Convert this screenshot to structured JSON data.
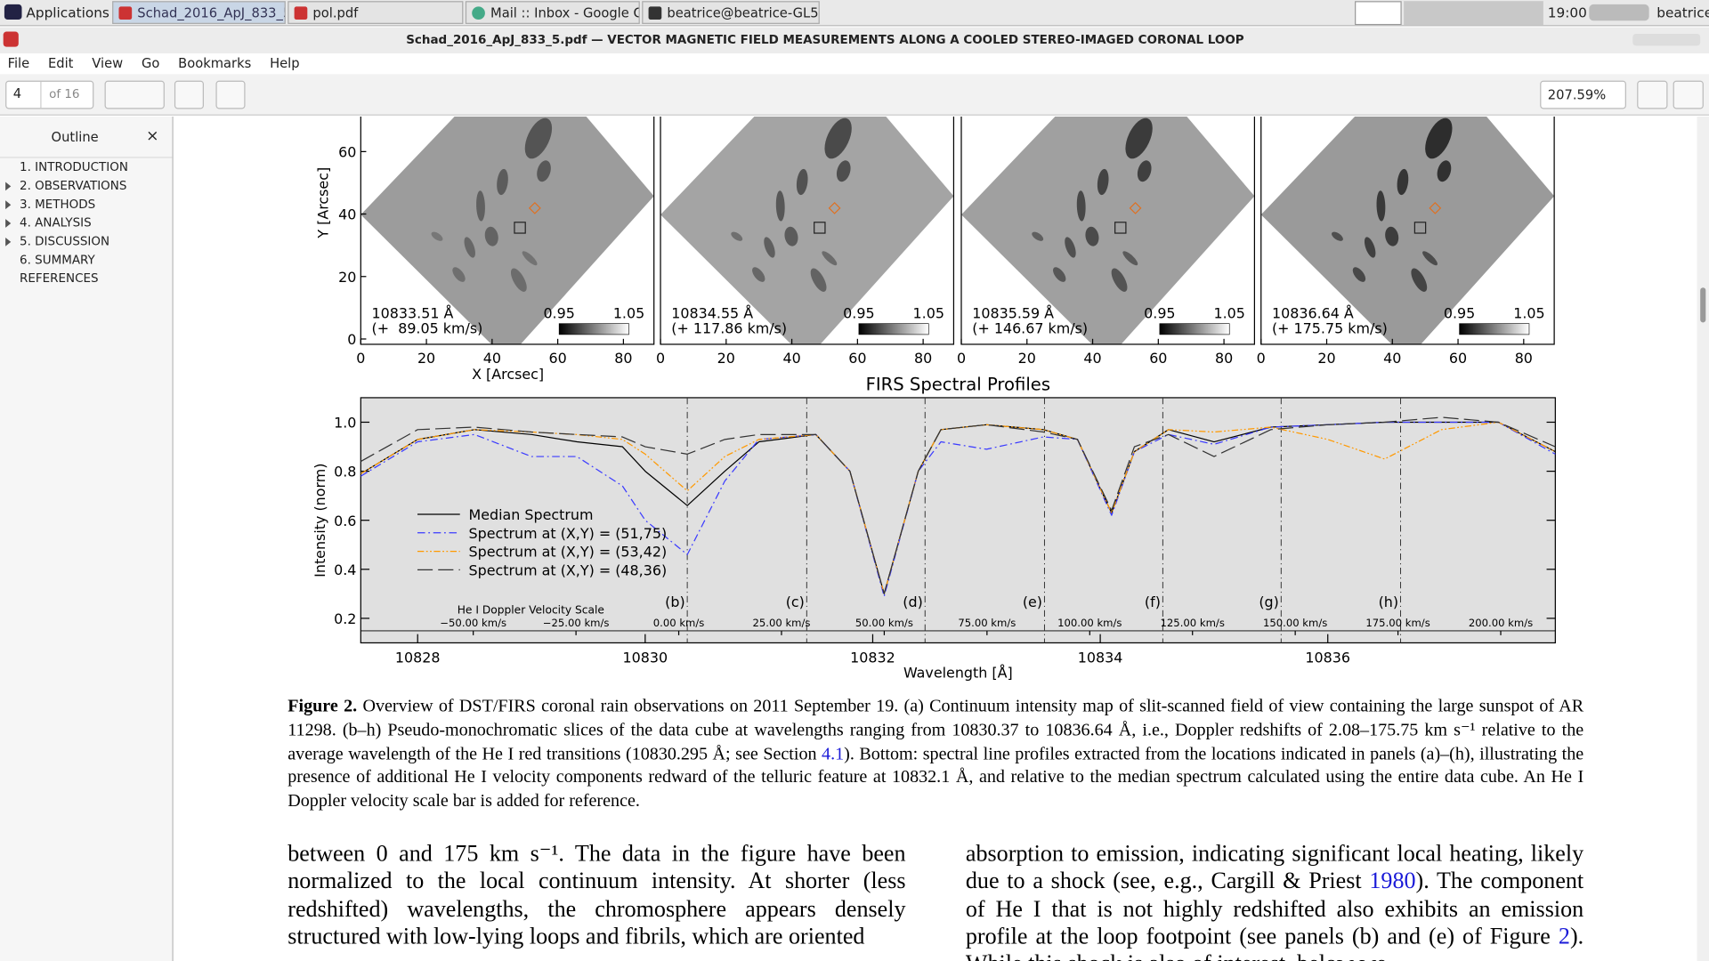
{
  "taskbar": {
    "applications": "Applications",
    "tabs": [
      "Schad_2016_ApJ_833_5....",
      "pol.pdf",
      "Mail :: Inbox - Google C...",
      "beatrice@beatrice-GL55..."
    ],
    "time": "19:00",
    "user": "beatrice"
  },
  "window": {
    "title": "Schad_2016_ApJ_833_5.pdf — VECTOR MAGNETIC FIELD MEASUREMENTS ALONG A COOLED STEREO-IMAGED CORONAL LOOP"
  },
  "menu": [
    "File",
    "Edit",
    "View",
    "Go",
    "Bookmarks",
    "Help"
  ],
  "toolbar": {
    "page": "4",
    "page_count": "of 16",
    "zoom": "207.59%"
  },
  "outline": {
    "title": "Outline",
    "close": "×",
    "items": [
      "1. INTRODUCTION",
      "2. OBSERVATIONS",
      "3. METHODS",
      "4. ANALYSIS",
      "5. DISCUSSION",
      "6. SUMMARY",
      "REFERENCES"
    ]
  },
  "chart_data": [
    {
      "type": "image",
      "wavelength_label": "10833.51 Å",
      "velocity_label": "(+  89.05 km/s)",
      "colorbar_ticks": [
        0.95,
        1.05
      ],
      "xlim": [
        0,
        89.3
      ],
      "ylim": [
        -1.7,
        71.2
      ],
      "xticks": [
        0,
        20,
        40,
        60,
        80
      ],
      "yticks": [
        0,
        20,
        40,
        60
      ],
      "xlabel": "X [Arcsec]",
      "ylabel": "Y [Arcsec]"
    },
    {
      "type": "image",
      "wavelength_label": "10834.55 Å",
      "velocity_label": "(+ 117.86 km/s)",
      "colorbar_ticks": [
        0.95,
        1.05
      ],
      "xlim": [
        0,
        89.3
      ],
      "ylim": [
        -1.7,
        71.2
      ],
      "xticks": [
        0,
        20,
        40,
        60,
        80
      ]
    },
    {
      "type": "image",
      "wavelength_label": "10835.59 Å",
      "velocity_label": "(+ 146.67 km/s)",
      "colorbar_ticks": [
        0.95,
        1.05
      ],
      "xlim": [
        0,
        89.3
      ],
      "ylim": [
        -1.7,
        71.2
      ],
      "xticks": [
        0,
        20,
        40,
        60,
        80
      ]
    },
    {
      "type": "image",
      "wavelength_label": "10836.64 Å",
      "velocity_label": "(+ 175.75 km/s)",
      "colorbar_ticks": [
        0.95,
        1.05
      ],
      "xlim": [
        0,
        89.3
      ],
      "ylim": [
        -1.7,
        71.2
      ],
      "xticks": [
        0,
        20,
        40,
        60,
        80
      ]
    },
    {
      "type": "line",
      "title": "FIRS Spectral Profiles",
      "xlabel": "Wavelength [Å]",
      "ylabel": "Intensity (norm)",
      "x": [
        10827.5,
        10828,
        10828.5,
        10829,
        10829.4,
        10829.8,
        10830.0,
        10830.37,
        10830.7,
        10831.0,
        10831.5,
        10831.8,
        10832.1,
        10832.4,
        10832.6,
        10833,
        10833.5,
        10833.8,
        10834.1,
        10834.3,
        10834.6,
        10835.0,
        10835.5,
        10836.0,
        10836.5,
        10837.0,
        10837.5,
        10838.0
      ],
      "series": [
        {
          "name": "Median Spectrum",
          "color": "#000000",
          "style": "solid",
          "values": [
            0.79,
            0.93,
            0.97,
            0.95,
            0.92,
            0.9,
            0.8,
            0.66,
            0.8,
            0.92,
            0.95,
            0.8,
            0.3,
            0.8,
            0.97,
            0.99,
            0.97,
            0.93,
            0.63,
            0.88,
            0.97,
            0.92,
            0.98,
            0.99,
            1.0,
            1.0,
            1.0,
            0.88
          ]
        },
        {
          "name": "Spectrum at (X,Y) = (51,75)",
          "color": "#3a3aff",
          "style": "dashdot",
          "values": [
            0.78,
            0.92,
            0.95,
            0.86,
            0.86,
            0.74,
            0.6,
            0.46,
            0.76,
            0.93,
            0.95,
            0.8,
            0.29,
            0.8,
            0.92,
            0.89,
            0.94,
            0.93,
            0.62,
            0.88,
            0.95,
            0.91,
            0.98,
            0.99,
            1.0,
            1.0,
            1.0,
            0.87
          ]
        },
        {
          "name": "Spectrum at (X,Y) = (53,42)",
          "color": "#ff9900",
          "style": "dashdotdot",
          "values": [
            0.79,
            0.93,
            0.97,
            0.96,
            0.95,
            0.93,
            0.87,
            0.72,
            0.86,
            0.93,
            0.95,
            0.8,
            0.3,
            0.8,
            0.97,
            0.99,
            0.97,
            0.93,
            0.63,
            0.88,
            0.97,
            0.96,
            0.98,
            0.93,
            0.85,
            0.97,
            1.0,
            0.88
          ]
        },
        {
          "name": "Spectrum at (X,Y) = (48,36)",
          "color": "#333333",
          "style": "longdash",
          "values": [
            0.84,
            0.97,
            0.98,
            0.96,
            0.95,
            0.94,
            0.9,
            0.87,
            0.93,
            0.95,
            0.95,
            0.8,
            0.3,
            0.8,
            0.97,
            0.99,
            0.96,
            0.93,
            0.64,
            0.9,
            0.95,
            0.86,
            0.97,
            0.99,
            1.0,
            1.02,
            1.0,
            0.9
          ]
        }
      ],
      "xlim": [
        10827.5,
        10838.0
      ],
      "ylim": [
        0.1,
        1.1
      ],
      "xticks": [
        10828,
        10830,
        10832,
        10834,
        10836
      ],
      "yticks": [
        0.2,
        0.4,
        0.6,
        0.8,
        {
          "value": 1,
          "label": "1.0"
        }
      ],
      "legend": "center-left",
      "markers": [
        {
          "label": "(b)",
          "x": 10830.37
        },
        {
          "label": "(c)",
          "x": 10831.42
        },
        {
          "label": "(d)",
          "x": 10832.46
        },
        {
          "label": "(e)",
          "x": 10833.51
        },
        {
          "label": "(f)",
          "x": 10834.55
        },
        {
          "label": "(g)",
          "x": 10835.59
        },
        {
          "label": "(h)",
          "x": 10836.64
        }
      ],
      "velocity_scale": {
        "title": "He I Doppler Velocity Scale",
        "rest_wavelength": 10830.295,
        "ticks": [
          {
            "value": -50,
            "label": "−50.00 km/s"
          },
          {
            "value": -25,
            "label": "−25.00 km/s"
          },
          {
            "value": 0,
            "label": "0.00 km/s"
          },
          {
            "value": 25,
            "label": "25.00 km/s"
          },
          {
            "value": 50,
            "label": "50.00 km/s"
          },
          {
            "value": 75,
            "label": "75.00 km/s"
          },
          {
            "value": 100,
            "label": "100.00 km/s"
          },
          {
            "value": 125,
            "label": "125.00 km/s"
          },
          {
            "value": 150,
            "label": "150.00 km/s"
          },
          {
            "value": 175,
            "label": "175.00 km/s"
          },
          {
            "value": 200,
            "label": "200.00 km/s"
          }
        ]
      }
    }
  ],
  "document": {
    "caption": {
      "label": "Figure 2.",
      "parts": [
        " Overview of DST/FIRS coronal rain observations on 2011 September 19. (a) Continuum intensity map of slit-scanned field of view containing the large sunspot of AR 11298. (b–h) Pseudo-monochromatic slices of the data cube at wavelengths ranging from 10830.37 to 10836.64 Å, i.e., Doppler redshifts of 2.08–175.75 km s⁻¹ relative to the average wavelength of the He I red transitions (10830.295 Å; see Section ",
        "4.1",
        "). Bottom: spectral line profiles extracted from the locations indicated in panels (a)–(h), illustrating the presence of additional He I velocity components redward of the telluric feature at 10832.1 Å, and relative to the median spectrum calculated using the entire data cube. An He I Doppler velocity scale bar is added for reference."
      ]
    },
    "left_column": "between 0 and 175 km s⁻¹. The data in the figure have been normalized to the local continuum intensity. At shorter (less redshifted) wavelengths, the chromosphere appears densely structured with low-lying loops and fibrils, which are oriented",
    "right_column": [
      "absorption to emission, indicating significant local heating, likely due to a shock (see, e.g., Cargill & Priest ",
      "1980",
      "). The component of He I that is not highly redshifted also exhibits an emission profile at the loop footpoint (see panels (b) and (e) of Figure ",
      "2",
      "). While this shock is also of interest, below we"
    ]
  }
}
